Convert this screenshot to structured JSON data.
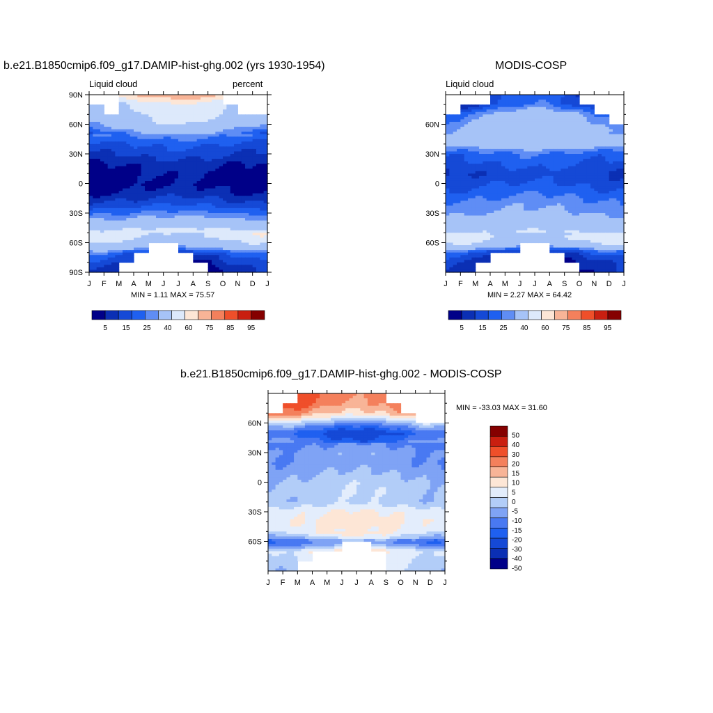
{
  "colors": {
    "base12": [
      "#000088",
      "#0b2fb4",
      "#1549d6",
      "#1f60f0",
      "#5f8df5",
      "#a6c3f7",
      "#dde9fb",
      "#fde6d6",
      "#f8b497",
      "#f4805c",
      "#ef4f2a",
      "#c91f10",
      "#850000"
    ],
    "diff14": [
      "#000088",
      "#0b2fb4",
      "#1549d6",
      "#1f60f0",
      "#4979f2",
      "#7fa3f5",
      "#b2cdf8",
      "#e3edfc",
      "#fde6d6",
      "#f8b497",
      "#f4805c",
      "#ef4f2a",
      "#c91f10",
      "#850000"
    ]
  },
  "chart_data": [
    {
      "type": "heatmap",
      "title": "b.e21.B1850cmip6.f09_g17.DAMIP-hist-ghg.002 (yrs 1930-1954)",
      "left_label": "Liquid cloud",
      "right_label": "percent",
      "stats": "MIN =   1.11 MAX =  75.57",
      "x_ticks": [
        "J",
        "F",
        "M",
        "A",
        "M",
        "J",
        "J",
        "A",
        "S",
        "O",
        "N",
        "D",
        "J"
      ],
      "y_ticks": [
        "90N",
        "60N",
        "30N",
        "0",
        "30S",
        "60S",
        "90S"
      ],
      "y_values": [
        90,
        60,
        30,
        0,
        -30,
        -60,
        -90
      ],
      "colorbar_labels": [
        "5",
        "15",
        "25",
        "40",
        "60",
        "75",
        "85",
        "95"
      ],
      "ylim": [
        -90,
        90
      ],
      "profile": [
        [
          90,
          62
        ],
        [
          80,
          40
        ],
        [
          70,
          38
        ],
        [
          60,
          33
        ],
        [
          50,
          22
        ],
        [
          40,
          15
        ],
        [
          30,
          11
        ],
        [
          20,
          6
        ],
        [
          10,
          4
        ],
        [
          0,
          3
        ],
        [
          -10,
          6
        ],
        [
          -20,
          12
        ],
        [
          -30,
          20
        ],
        [
          -40,
          30
        ],
        [
          -45,
          38
        ],
        [
          -50,
          45
        ],
        [
          -55,
          42
        ],
        [
          -60,
          35
        ],
        [
          -65,
          30
        ],
        [
          -70,
          15
        ],
        [
          -80,
          8
        ],
        [
          -90,
          3
        ]
      ],
      "missing": [
        {
          "lat_from": 80,
          "lat_to": 90,
          "months": [
            0,
            1,
            2,
            3,
            4,
            5,
            6,
            7,
            8,
            9,
            10,
            11
          ],
          "mask": [
            1,
            1,
            0,
            0,
            0,
            0,
            0,
            0,
            0,
            1,
            1,
            1
          ]
        },
        {
          "lat_from": 70,
          "lat_to": 80,
          "months": [
            0,
            1,
            2,
            3,
            4,
            5,
            6,
            7,
            8,
            9,
            10,
            11
          ],
          "mask": [
            0,
            1,
            0,
            0,
            0,
            0,
            0,
            0,
            0,
            0,
            1,
            1
          ]
        },
        {
          "lat_from": -90,
          "lat_to": -80,
          "months": [
            0,
            1,
            2,
            3,
            4,
            5,
            6,
            7,
            8,
            9,
            10,
            11
          ],
          "mask": [
            0,
            0,
            1,
            1,
            1,
            1,
            1,
            1,
            0,
            0,
            0,
            0
          ]
        },
        {
          "lat_from": -80,
          "lat_to": -70,
          "months": [
            0,
            1,
            2,
            3,
            4,
            5,
            6,
            7,
            8,
            9,
            10,
            11
          ],
          "mask": [
            0,
            0,
            0,
            1,
            1,
            1,
            1,
            0,
            0,
            0,
            0,
            0
          ]
        },
        {
          "lat_from": -70,
          "lat_to": -60,
          "months": [
            0,
            1,
            2,
            3,
            4,
            5,
            6,
            7,
            8,
            9,
            10,
            11
          ],
          "mask": [
            0,
            0,
            0,
            0,
            1,
            1,
            0,
            0,
            0,
            0,
            0,
            0
          ]
        }
      ]
    },
    {
      "type": "heatmap",
      "title": "MODIS-COSP",
      "left_label": "Liquid cloud",
      "stats": "MIN =   2.27 MAX =  64.42",
      "x_ticks": [
        "J",
        "F",
        "M",
        "A",
        "M",
        "J",
        "J",
        "A",
        "S",
        "O",
        "N",
        "D",
        "J"
      ],
      "y_ticks": [
        "60N",
        "30N",
        "0",
        "30S",
        "60S"
      ],
      "y_values": [
        60,
        30,
        0,
        -30,
        -60
      ],
      "colorbar_labels": [
        "5",
        "15",
        "25",
        "40",
        "60",
        "75",
        "85",
        "95"
      ],
      "ylim": [
        -90,
        90
      ],
      "profile": [
        [
          90,
          10
        ],
        [
          80,
          12
        ],
        [
          70,
          25
        ],
        [
          60,
          30
        ],
        [
          50,
          32
        ],
        [
          40,
          30
        ],
        [
          30,
          18
        ],
        [
          20,
          15
        ],
        [
          10,
          11
        ],
        [
          0,
          14
        ],
        [
          -10,
          18
        ],
        [
          -20,
          22
        ],
        [
          -30,
          25
        ],
        [
          -40,
          32
        ],
        [
          -50,
          40
        ],
        [
          -55,
          42
        ],
        [
          -60,
          38
        ],
        [
          -65,
          25
        ],
        [
          -70,
          12
        ],
        [
          -80,
          5
        ],
        [
          -90,
          3
        ]
      ],
      "missing": [
        {
          "lat_from": 80,
          "lat_to": 90,
          "months": [
            0,
            1,
            2,
            3,
            4,
            5,
            6,
            7,
            8,
            9,
            10,
            11
          ],
          "mask": [
            1,
            1,
            1,
            0,
            0,
            0,
            0,
            0,
            0,
            1,
            1,
            1
          ]
        },
        {
          "lat_from": 70,
          "lat_to": 80,
          "months": [
            0,
            1,
            2,
            3,
            4,
            5,
            6,
            7,
            8,
            9,
            10,
            11
          ],
          "mask": [
            1,
            0,
            0,
            0,
            0,
            0,
            0,
            0,
            0,
            0,
            1,
            1
          ]
        },
        {
          "lat_from": 60,
          "lat_to": 70,
          "months": [
            0,
            1,
            2,
            3,
            4,
            5,
            6,
            7,
            8,
            9,
            10,
            11
          ],
          "mask": [
            0,
            0,
            0,
            0,
            0,
            0,
            0,
            0,
            0,
            0,
            0,
            1
          ]
        },
        {
          "lat_from": -90,
          "lat_to": -80,
          "months": [
            0,
            1,
            2,
            3,
            4,
            5,
            6,
            7,
            8,
            9,
            10,
            11
          ],
          "mask": [
            0,
            0,
            1,
            1,
            1,
            1,
            1,
            1,
            1,
            0,
            0,
            0
          ]
        },
        {
          "lat_from": -80,
          "lat_to": -70,
          "months": [
            0,
            1,
            2,
            3,
            4,
            5,
            6,
            7,
            8,
            9,
            10,
            11
          ],
          "mask": [
            0,
            0,
            0,
            1,
            1,
            1,
            1,
            1,
            0,
            0,
            0,
            0
          ]
        },
        {
          "lat_from": -70,
          "lat_to": -60,
          "months": [
            0,
            1,
            2,
            3,
            4,
            5,
            6,
            7,
            8,
            9,
            10,
            11
          ],
          "mask": [
            0,
            0,
            0,
            0,
            0,
            1,
            1,
            0,
            0,
            0,
            0,
            0
          ]
        }
      ]
    },
    {
      "type": "heatmap",
      "title": "b.e21.B1850cmip6.f09_g17.DAMIP-hist-ghg.002 - MODIS-COSP",
      "stats": "MIN = -33.03 MAX =  31.60",
      "x_ticks": [
        "J",
        "F",
        "M",
        "A",
        "M",
        "J",
        "J",
        "A",
        "S",
        "O",
        "N",
        "D",
        "J"
      ],
      "y_ticks": [
        "60N",
        "30N",
        "0",
        "30S",
        "60S"
      ],
      "y_values": [
        60,
        30,
        0,
        -30,
        -60
      ],
      "colorbar_labels": [
        "50",
        "40",
        "30",
        "20",
        "15",
        "10",
        "5",
        "0",
        "-5",
        "-10",
        "-15",
        "-20",
        "-30",
        "-40",
        "-50"
      ],
      "ylim": [
        -90,
        90
      ],
      "profile": [
        [
          90,
          22
        ],
        [
          80,
          20
        ],
        [
          70,
          14
        ],
        [
          60,
          -4
        ],
        [
          50,
          -20
        ],
        [
          40,
          -12
        ],
        [
          30,
          -8
        ],
        [
          20,
          -9
        ],
        [
          10,
          -6
        ],
        [
          0,
          -3
        ],
        [
          -10,
          -2
        ],
        [
          -20,
          -3
        ],
        [
          -30,
          4
        ],
        [
          -40,
          6
        ],
        [
          -50,
          4
        ],
        [
          -55,
          0
        ],
        [
          -60,
          -12
        ],
        [
          -65,
          -6
        ],
        [
          -70,
          5
        ],
        [
          -80,
          2
        ],
        [
          -90,
          0
        ]
      ],
      "missing": [
        {
          "lat_from": 80,
          "lat_to": 90,
          "months": [
            0,
            1,
            2,
            3,
            4,
            5,
            6,
            7,
            8,
            9,
            10,
            11
          ],
          "mask": [
            1,
            1,
            0,
            0,
            0,
            0,
            0,
            0,
            1,
            1,
            1,
            1
          ]
        },
        {
          "lat_from": 70,
          "lat_to": 80,
          "months": [
            0,
            1,
            2,
            3,
            4,
            5,
            6,
            7,
            8,
            9,
            10,
            11
          ],
          "mask": [
            1,
            0,
            0,
            0,
            0,
            0,
            0,
            0,
            0,
            1,
            1,
            1
          ]
        },
        {
          "lat_from": 60,
          "lat_to": 70,
          "months": [
            0,
            1,
            2,
            3,
            4,
            5,
            6,
            7,
            8,
            9,
            10,
            11
          ],
          "mask": [
            0,
            0,
            0,
            0,
            0,
            0,
            0,
            0,
            0,
            0,
            1,
            1
          ]
        },
        {
          "lat_from": -90,
          "lat_to": -80,
          "months": [
            0,
            1,
            2,
            3,
            4,
            5,
            6,
            7,
            8,
            9,
            10,
            11
          ],
          "mask": [
            0,
            0,
            1,
            1,
            1,
            1,
            1,
            1,
            0,
            0,
            0,
            0
          ]
        },
        {
          "lat_from": -80,
          "lat_to": -70,
          "months": [
            0,
            1,
            2,
            3,
            4,
            5,
            6,
            7,
            8,
            9,
            10,
            11
          ],
          "mask": [
            0,
            0,
            0,
            1,
            1,
            1,
            1,
            1,
            0,
            0,
            0,
            0
          ]
        },
        {
          "lat_from": -70,
          "lat_to": -60,
          "months": [
            0,
            1,
            2,
            3,
            4,
            5,
            6,
            7,
            8,
            9,
            10,
            11
          ],
          "mask": [
            0,
            0,
            0,
            0,
            0,
            1,
            1,
            0,
            0,
            0,
            0,
            0
          ]
        }
      ]
    }
  ]
}
